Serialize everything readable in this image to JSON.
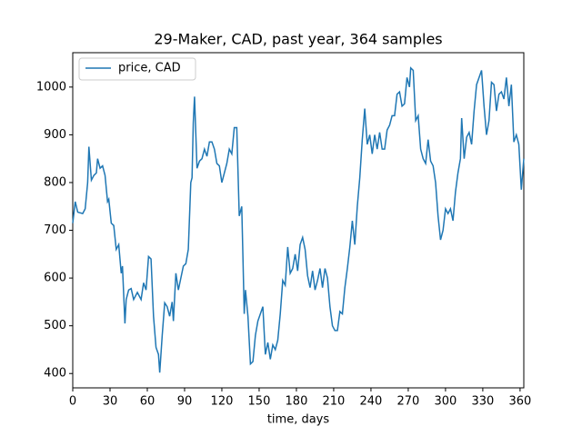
{
  "chart_data": {
    "type": "line",
    "title": "29-Maker, CAD, past year, 364 samples",
    "x_label": "time, days",
    "legend": "upper left",
    "xlim": [
      0,
      363
    ],
    "ylim": [
      370,
      1072
    ],
    "xticks": [
      0,
      30,
      60,
      90,
      120,
      150,
      180,
      210,
      240,
      270,
      300,
      330,
      360
    ],
    "yticks": [
      400,
      500,
      600,
      700,
      800,
      900,
      1000
    ],
    "x": [
      0,
      2,
      4,
      8,
      10,
      12,
      13,
      15,
      17,
      19,
      20,
      22,
      24,
      26,
      28,
      29,
      31,
      33,
      35,
      37,
      39,
      40,
      42,
      43,
      45,
      47,
      49,
      52,
      55,
      57,
      59,
      61,
      63,
      65,
      67,
      69,
      70,
      72,
      74,
      76,
      78,
      80,
      81,
      83,
      85,
      87,
      89,
      91,
      93,
      95,
      96,
      97,
      98,
      100,
      102,
      104,
      106,
      108,
      110,
      112,
      114,
      116,
      118,
      120,
      122,
      124,
      126,
      128,
      130,
      132,
      134,
      136,
      137,
      138,
      139,
      141,
      143,
      145,
      147,
      149,
      151,
      153,
      155,
      157,
      159,
      161,
      163,
      165,
      167,
      169,
      171,
      173,
      175,
      177,
      179,
      181,
      183,
      185,
      187,
      189,
      191,
      193,
      195,
      197,
      199,
      201,
      203,
      205,
      207,
      209,
      211,
      213,
      215,
      217,
      219,
      221,
      223,
      225,
      227,
      229,
      231,
      233,
      235,
      237,
      239,
      241,
      243,
      245,
      247,
      249,
      251,
      253,
      255,
      257,
      259,
      261,
      263,
      265,
      267,
      269,
      271,
      272,
      274,
      276,
      278,
      280,
      282,
      284,
      286,
      288,
      290,
      292,
      294,
      296,
      298,
      300,
      302,
      304,
      306,
      308,
      310,
      312,
      313,
      315,
      317,
      319,
      321,
      323,
      325,
      327,
      329,
      331,
      333,
      335,
      337,
      339,
      341,
      343,
      345,
      347,
      349,
      351,
      353,
      355,
      357,
      359,
      361,
      363
    ],
    "series": [
      {
        "name": "price, CAD",
        "color": "#1f77b4",
        "values": [
          715,
          760,
          738,
          735,
          745,
          800,
          875,
          805,
          815,
          820,
          850,
          830,
          835,
          815,
          760,
          765,
          715,
          710,
          660,
          670,
          610,
          625,
          505,
          555,
          575,
          578,
          555,
          570,
          555,
          590,
          575,
          645,
          640,
          520,
          455,
          440,
          402,
          480,
          548,
          540,
          520,
          550,
          510,
          610,
          575,
          600,
          625,
          630,
          660,
          800,
          810,
          925,
          980,
          830,
          845,
          850,
          870,
          855,
          885,
          885,
          870,
          840,
          835,
          800,
          820,
          840,
          870,
          860,
          915,
          915,
          730,
          750,
          640,
          525,
          575,
          520,
          420,
          425,
          480,
          510,
          525,
          540,
          440,
          465,
          430,
          460,
          450,
          470,
          525,
          595,
          585,
          665,
          610,
          620,
          650,
          615,
          670,
          685,
          660,
          605,
          580,
          615,
          575,
          595,
          620,
          580,
          620,
          600,
          540,
          500,
          490,
          490,
          530,
          525,
          580,
          620,
          665,
          720,
          670,
          750,
          810,
          890,
          955,
          880,
          900,
          860,
          900,
          870,
          905,
          870,
          870,
          910,
          920,
          940,
          940,
          985,
          990,
          960,
          965,
          1020,
          1000,
          1040,
          1035,
          930,
          940,
          870,
          850,
          840,
          890,
          845,
          835,
          800,
          730,
          680,
          700,
          745,
          735,
          745,
          720,
          780,
          820,
          850,
          935,
          850,
          895,
          905,
          880,
          950,
          1005,
          1020,
          1035,
          960,
          900,
          930,
          1010,
          1005,
          950,
          985,
          990,
          975,
          1020,
          960,
          1005,
          885,
          900,
          880,
          785,
          850
        ]
      }
    ]
  }
}
